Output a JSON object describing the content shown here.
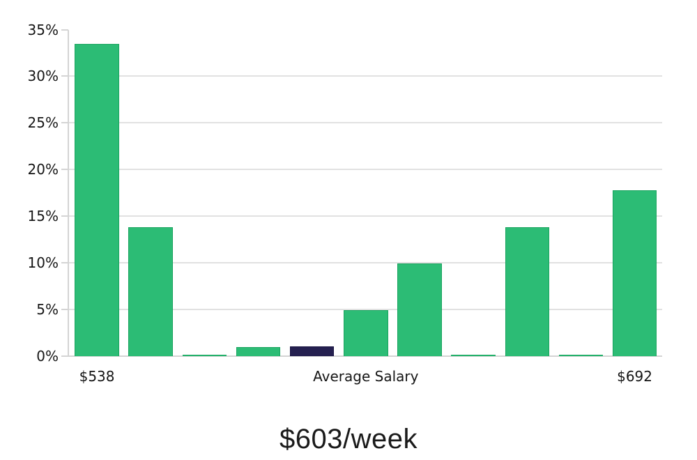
{
  "chart_data": {
    "type": "bar",
    "title": "$603/week",
    "xlabel": "",
    "ylabel": "",
    "ylim": [
      0,
      35
    ],
    "y_tick_labels": [
      "0%",
      "5%",
      "10%",
      "15%",
      "20%",
      "25%",
      "30%",
      "35%"
    ],
    "x_tick_labels": [
      {
        "bar_index": 0,
        "label": "$538"
      },
      {
        "bar_index": 5,
        "label": "Average Salary"
      },
      {
        "bar_index": 10,
        "label": "$692"
      }
    ],
    "values_pct": [
      33.5,
      13.8,
      0.15,
      1.0,
      1.05,
      4.9,
      9.9,
      0.15,
      13.8,
      0.15,
      17.8
    ],
    "bar_color_keys": [
      "green",
      "green",
      "green",
      "green",
      "dark",
      "green",
      "green",
      "green",
      "green",
      "green",
      "green"
    ],
    "colors": {
      "green": "#2cbc75",
      "green_border": "#1aa45f",
      "dark": "#252050",
      "dark_border": "#171240",
      "gridline": "#e1e1e1",
      "axis_line": "#d4d4d4",
      "tick_text": "#151515",
      "title_text": "#1a1a1a"
    },
    "grid": "horizontal lines at 5% steps from 5% to 30%, tick only at 35%",
    "legend": "none"
  }
}
